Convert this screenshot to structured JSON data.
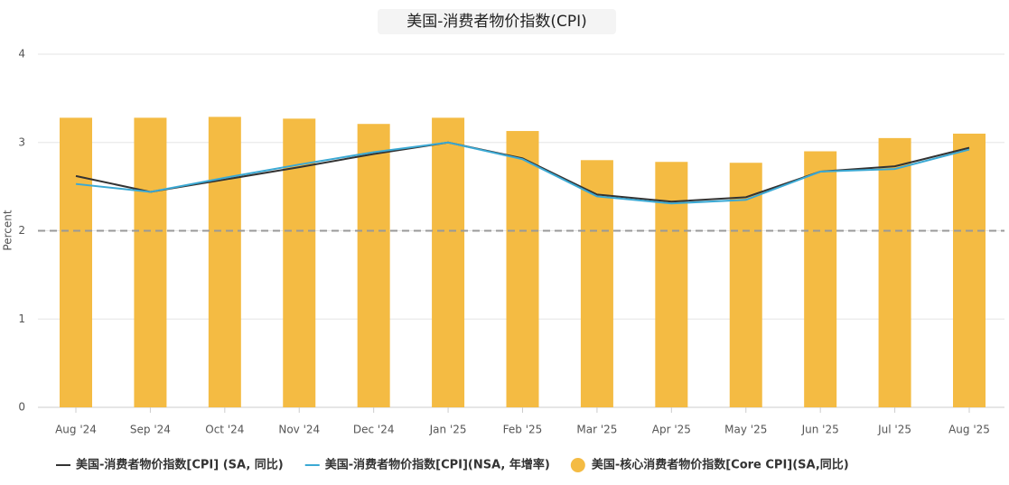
{
  "chart_data": {
    "type": "bar-line",
    "title": "美国-消费者物价指数(CPI)",
    "y_label": "Percent",
    "categories": [
      "Aug '24",
      "Sep '24",
      "Oct '24",
      "Nov '24",
      "Dec '24",
      "Jan '25",
      "Feb '25",
      "Mar '25",
      "Apr '25",
      "May '25",
      "Jun '25",
      "Jul '25",
      "Aug '25"
    ],
    "series": [
      {
        "name": "美国-消费者物价指数[CPI] (SA, 同比)",
        "type": "line",
        "color": "#333333",
        "values": [
          2.62,
          2.44,
          2.58,
          2.72,
          2.87,
          3.0,
          2.82,
          2.41,
          2.33,
          2.38,
          2.67,
          2.73,
          2.94
        ]
      },
      {
        "name": "美国-消费者物价指数[CPI](NSA, 年增率)",
        "type": "line",
        "color": "#3ba9d4",
        "values": [
          2.53,
          2.44,
          2.6,
          2.75,
          2.89,
          3.0,
          2.81,
          2.39,
          2.31,
          2.35,
          2.67,
          2.7,
          2.92
        ]
      },
      {
        "name": "美国-核心消费者物价指数[Core CPI](SA,同比)",
        "type": "bar",
        "color": "#f4bb43",
        "values": [
          3.28,
          3.28,
          3.29,
          3.27,
          3.21,
          3.28,
          3.13,
          2.8,
          2.78,
          2.77,
          2.9,
          3.05,
          3.1
        ]
      }
    ],
    "reference_line": 2,
    "ylim": [
      0,
      4
    ],
    "yticks": [
      0,
      1,
      2,
      3,
      4
    ],
    "grid": true
  }
}
